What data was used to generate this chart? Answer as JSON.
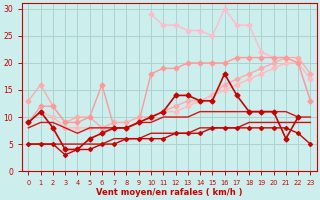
{
  "xlabel": "Vent moyen/en rafales ( km/h )",
  "xlim": [
    -0.5,
    23.5
  ],
  "ylim": [
    0,
    31
  ],
  "yticks": [
    0,
    5,
    10,
    15,
    20,
    25,
    30
  ],
  "xticks": [
    0,
    1,
    2,
    3,
    4,
    5,
    6,
    7,
    8,
    9,
    10,
    11,
    12,
    13,
    14,
    15,
    16,
    17,
    18,
    19,
    20,
    21,
    22,
    23
  ],
  "bg_color": "#cceeed",
  "grid_color": "#aad4d0",
  "lines": [
    {
      "x": [
        0,
        1,
        2,
        3,
        4,
        5,
        6,
        7,
        8,
        9,
        10,
        11,
        12,
        13,
        14,
        15,
        16,
        17,
        18,
        19,
        20,
        21,
        22,
        23
      ],
      "y": [
        13,
        16,
        12,
        9,
        10,
        10,
        8,
        9,
        9,
        10,
        10,
        11,
        12,
        13,
        13,
        14,
        16,
        17,
        18,
        19,
        20,
        21,
        21,
        18
      ],
      "color": "#ffaaaa",
      "lw": 1.0,
      "marker": "D",
      "ms": 2.5,
      "zorder": 3
    },
    {
      "x": [
        0,
        1,
        2,
        3,
        4,
        5,
        6,
        7,
        8,
        9,
        10,
        11,
        12,
        13,
        14,
        15,
        16,
        17,
        18,
        19,
        20,
        21,
        22,
        23
      ],
      "y": [
        9,
        11,
        10,
        8,
        8,
        8,
        8,
        8,
        8,
        9,
        10,
        11,
        11,
        12,
        13,
        14,
        15,
        16,
        17,
        18,
        19,
        20,
        20,
        17
      ],
      "color": "#ffbbbb",
      "lw": 1.0,
      "marker": "D",
      "ms": 2.5,
      "zorder": 3
    },
    {
      "x": [
        0,
        1,
        2,
        3,
        4,
        5,
        6,
        7,
        8,
        9,
        10,
        11,
        12,
        13,
        14,
        15,
        16,
        17,
        18,
        19,
        20,
        21,
        22,
        23
      ],
      "y": [
        9,
        12,
        12,
        9,
        9,
        10,
        16,
        8,
        8,
        9,
        18,
        19,
        19,
        20,
        20,
        20,
        20,
        21,
        21,
        21,
        21,
        21,
        20,
        13
      ],
      "color": "#ff9999",
      "lw": 1.0,
      "marker": "D",
      "ms": 2.5,
      "zorder": 3
    },
    {
      "x": [
        10,
        11,
        12,
        13,
        14,
        15,
        16,
        17,
        18,
        19,
        20,
        21,
        22,
        23
      ],
      "y": [
        29,
        27,
        27,
        26,
        26,
        25,
        30,
        27,
        27,
        22,
        21,
        21,
        20,
        13
      ],
      "color": "#ffbbcc",
      "lw": 1.0,
      "marker": "D",
      "ms": 2.5,
      "zorder": 2
    },
    {
      "x": [
        0,
        1,
        2,
        3,
        4,
        5,
        6,
        7,
        8,
        9,
        10,
        11,
        12,
        13,
        14,
        15,
        16,
        17,
        18,
        19,
        20,
        21,
        22,
        23
      ],
      "y": [
        9,
        11,
        8,
        4,
        4,
        6,
        7,
        8,
        8,
        9,
        10,
        11,
        14,
        14,
        13,
        13,
        18,
        14,
        11,
        11,
        11,
        6,
        10,
        null
      ],
      "color": "#cc0000",
      "lw": 1.2,
      "marker": "D",
      "ms": 2.5,
      "zorder": 4
    },
    {
      "x": [
        0,
        1,
        2,
        3,
        4,
        5,
        6,
        7,
        8,
        9,
        10,
        11,
        12,
        13,
        14,
        15,
        16,
        17,
        18,
        19,
        20,
        21,
        22,
        23
      ],
      "y": [
        8,
        9,
        9,
        8,
        7,
        8,
        8,
        8,
        8,
        9,
        9,
        10,
        10,
        10,
        11,
        11,
        11,
        11,
        11,
        11,
        11,
        11,
        10,
        10
      ],
      "color": "#dd1111",
      "lw": 1.0,
      "marker": null,
      "ms": 0,
      "zorder": 3
    },
    {
      "x": [
        0,
        1,
        2,
        3,
        4,
        5,
        6,
        7,
        8,
        9,
        10,
        11,
        12,
        13,
        14,
        15,
        16,
        17,
        18,
        19,
        20,
        21,
        22,
        23
      ],
      "y": [
        5,
        5,
        5,
        5,
        5,
        5,
        5,
        6,
        6,
        6,
        7,
        7,
        7,
        7,
        8,
        8,
        8,
        8,
        9,
        9,
        9,
        9,
        9,
        9
      ],
      "color": "#cc1111",
      "lw": 1.0,
      "marker": null,
      "ms": 0,
      "zorder": 3
    },
    {
      "x": [
        0,
        1,
        2,
        3,
        4,
        5,
        6,
        7,
        8,
        9,
        10,
        11,
        12,
        13,
        14,
        15,
        16,
        17,
        18,
        19,
        20,
        21,
        22,
        23
      ],
      "y": [
        5,
        5,
        5,
        3,
        4,
        4,
        5,
        5,
        6,
        6,
        6,
        6,
        7,
        7,
        7,
        8,
        8,
        8,
        8,
        8,
        8,
        8,
        7,
        5
      ],
      "color": "#cc0000",
      "lw": 1.0,
      "marker": "D",
      "ms": 2.0,
      "zorder": 4
    }
  ],
  "axis_color": "#cc0000",
  "tick_color": "#cc0000",
  "label_color": "#cc0000"
}
